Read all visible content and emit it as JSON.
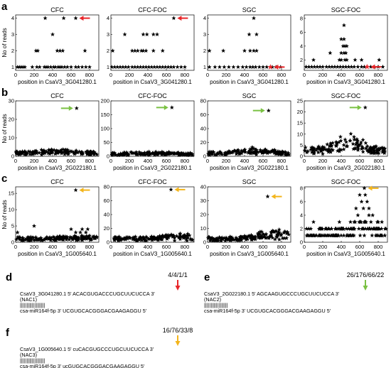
{
  "x_label_prefix": "position in",
  "colors": {
    "red": "#e8262a",
    "green": "#7ac143",
    "orange": "#f3b51c",
    "star": "#000000"
  },
  "chart_data": [
    {
      "type": "scatter",
      "panel": "a",
      "title": "CFC",
      "ylabel": "No of reads",
      "xlabel": "position in CsaV3_3G041280.1",
      "xlim": [
        0,
        900
      ],
      "ylim": [
        0.8,
        4.2
      ],
      "yticks": [
        1,
        2,
        3,
        4
      ],
      "xticks": [
        0,
        200,
        400,
        600,
        800
      ],
      "stars": [
        [
          20,
          1
        ],
        [
          40,
          1
        ],
        [
          60,
          1
        ],
        [
          80,
          1
        ],
        [
          100,
          1
        ],
        [
          180,
          1
        ],
        [
          230,
          1
        ],
        [
          260,
          1
        ],
        [
          310,
          1
        ],
        [
          330,
          1
        ],
        [
          350,
          1
        ],
        [
          380,
          1
        ],
        [
          410,
          1
        ],
        [
          430,
          1
        ],
        [
          460,
          1
        ],
        [
          480,
          1
        ],
        [
          500,
          1
        ],
        [
          530,
          1
        ],
        [
          560,
          1
        ],
        [
          600,
          1
        ],
        [
          650,
          1
        ],
        [
          680,
          1
        ],
        [
          720,
          1
        ],
        [
          760,
          1
        ],
        [
          800,
          1
        ],
        [
          220,
          2
        ],
        [
          240,
          2
        ],
        [
          450,
          2
        ],
        [
          480,
          2
        ],
        [
          510,
          2
        ],
        [
          750,
          2
        ],
        [
          400,
          3
        ],
        [
          320,
          4
        ],
        [
          520,
          4
        ],
        [
          650,
          4
        ]
      ],
      "highlight": [],
      "arrow": {
        "at": [
          650,
          4
        ],
        "color": "red",
        "dir": "left"
      }
    },
    {
      "type": "scatter",
      "panel": "a",
      "title": "CFC-FOC",
      "ylabel": "",
      "xlabel": "position in CsaV3_3G041280.1",
      "xlim": [
        0,
        900
      ],
      "ylim": [
        0.8,
        4.2
      ],
      "yticks": [
        1,
        2,
        3,
        4
      ],
      "xticks": [
        0,
        200,
        400,
        600,
        800
      ],
      "stars": [
        [
          10,
          1
        ],
        [
          40,
          1
        ],
        [
          70,
          1
        ],
        [
          100,
          1
        ],
        [
          130,
          1
        ],
        [
          160,
          1
        ],
        [
          190,
          1
        ],
        [
          230,
          1
        ],
        [
          260,
          1
        ],
        [
          290,
          1
        ],
        [
          320,
          1
        ],
        [
          350,
          1
        ],
        [
          380,
          1
        ],
        [
          410,
          1
        ],
        [
          440,
          1
        ],
        [
          470,
          1
        ],
        [
          500,
          1
        ],
        [
          530,
          1
        ],
        [
          560,
          1
        ],
        [
          590,
          1
        ],
        [
          620,
          1
        ],
        [
          650,
          1
        ],
        [
          680,
          1
        ],
        [
          720,
          1
        ],
        [
          760,
          1
        ],
        [
          800,
          1
        ],
        [
          20,
          2
        ],
        [
          230,
          2
        ],
        [
          260,
          2
        ],
        [
          290,
          2
        ],
        [
          330,
          2
        ],
        [
          350,
          2
        ],
        [
          380,
          2
        ],
        [
          460,
          2
        ],
        [
          560,
          2
        ],
        [
          150,
          3
        ],
        [
          350,
          3
        ],
        [
          390,
          3
        ],
        [
          460,
          3
        ],
        [
          500,
          3
        ],
        [
          680,
          4
        ]
      ],
      "highlight": [],
      "arrow": {
        "at": [
          680,
          4
        ],
        "color": "red",
        "dir": "left"
      }
    },
    {
      "type": "scatter",
      "panel": "a",
      "title": "SGC",
      "ylabel": "",
      "xlabel": "position in CsaV3_3G041280.1",
      "xlim": [
        0,
        900
      ],
      "ylim": [
        0.8,
        4.2
      ],
      "yticks": [
        1,
        2,
        3,
        4
      ],
      "xticks": [
        0,
        200,
        400,
        600,
        800
      ],
      "stars": [
        [
          20,
          1
        ],
        [
          80,
          1
        ],
        [
          130,
          1
        ],
        [
          180,
          1
        ],
        [
          230,
          1
        ],
        [
          280,
          1
        ],
        [
          330,
          1
        ],
        [
          380,
          1
        ],
        [
          420,
          1
        ],
        [
          460,
          1
        ],
        [
          490,
          1
        ],
        [
          520,
          1
        ],
        [
          560,
          1
        ],
        [
          600,
          1
        ],
        [
          640,
          1
        ],
        [
          700,
          1
        ],
        [
          740,
          1
        ],
        [
          790,
          1
        ],
        [
          20,
          2
        ],
        [
          170,
          2
        ],
        [
          400,
          2
        ],
        [
          460,
          2
        ],
        [
          500,
          2
        ],
        [
          530,
          2
        ],
        [
          450,
          3
        ],
        [
          530,
          3
        ],
        [
          500,
          4
        ]
      ],
      "highlight": [
        [
          680,
          1
        ]
      ],
      "arrow": {
        "at": [
          680,
          1
        ],
        "color": "red",
        "dir": "left"
      }
    },
    {
      "type": "scatter",
      "panel": "a",
      "title": "SGC-FOC",
      "ylabel": "",
      "xlabel": "position in CsaV3_3G041280.1",
      "xlim": [
        0,
        900
      ],
      "ylim": [
        0.5,
        8.5
      ],
      "yticks": [
        2,
        4,
        6,
        8
      ],
      "xticks": [
        0,
        200,
        400,
        600,
        800
      ],
      "stars": [
        [
          20,
          1
        ],
        [
          50,
          1
        ],
        [
          80,
          1
        ],
        [
          110,
          1
        ],
        [
          140,
          1
        ],
        [
          170,
          1
        ],
        [
          200,
          1
        ],
        [
          240,
          1
        ],
        [
          270,
          1
        ],
        [
          300,
          1
        ],
        [
          330,
          1
        ],
        [
          360,
          1
        ],
        [
          390,
          1
        ],
        [
          420,
          1
        ],
        [
          450,
          1
        ],
        [
          480,
          1
        ],
        [
          510,
          1
        ],
        [
          540,
          1
        ],
        [
          580,
          1
        ],
        [
          620,
          1
        ],
        [
          650,
          1
        ],
        [
          720,
          1
        ],
        [
          760,
          1
        ],
        [
          800,
          1
        ],
        [
          850,
          1
        ],
        [
          100,
          2
        ],
        [
          380,
          2
        ],
        [
          400,
          2
        ],
        [
          440,
          2
        ],
        [
          460,
          2
        ],
        [
          550,
          2
        ],
        [
          620,
          2
        ],
        [
          810,
          2
        ],
        [
          280,
          3
        ],
        [
          400,
          3
        ],
        [
          430,
          3
        ],
        [
          450,
          3
        ],
        [
          420,
          4
        ],
        [
          440,
          4
        ],
        [
          460,
          4
        ],
        [
          400,
          5
        ],
        [
          430,
          5
        ],
        [
          430,
          7
        ]
      ],
      "highlight": [
        [
          680,
          1
        ]
      ],
      "arrow": {
        "at": [
          680,
          1
        ],
        "color": "red",
        "dir": "left"
      }
    },
    {
      "type": "scatter",
      "panel": "b",
      "title": "CFC",
      "ylabel": "No of reads",
      "xlabel": "position in CsaV3_2G022180.1",
      "xlim": [
        0,
        900
      ],
      "ylim": [
        0,
        30
      ],
      "yticks": [
        0,
        10,
        20,
        30
      ],
      "xticks": [
        0,
        200,
        400,
        600,
        800
      ],
      "stars": [
        [
          660,
          26
        ]
      ],
      "dense": {
        "base": 0.8,
        "amp": 1.8,
        "hump": 1.5,
        "center": 450,
        "width": 250
      },
      "highlight": [],
      "arrow": {
        "at": [
          660,
          26
        ],
        "color": "green",
        "dir": "right"
      }
    },
    {
      "type": "scatter",
      "panel": "b",
      "title": "CFC-FOC",
      "ylabel": "",
      "xlabel": "position in CsaV3_2G022180.1",
      "xlim": [
        0,
        900
      ],
      "ylim": [
        0,
        200
      ],
      "yticks": [
        0,
        50,
        100,
        150,
        200
      ],
      "xticks": [
        0,
        200,
        400,
        600,
        800
      ],
      "stars": [
        [
          660,
          176
        ]
      ],
      "dense": {
        "base": 3,
        "amp": 9,
        "hump": 6,
        "center": 450,
        "width": 300
      },
      "highlight": [],
      "arrow": {
        "at": [
          660,
          176
        ],
        "color": "green",
        "dir": "right"
      }
    },
    {
      "type": "scatter",
      "panel": "b",
      "title": "SGC",
      "ylabel": "",
      "xlabel": "position in CsaV3_2G022180.1",
      "xlim": [
        0,
        900
      ],
      "ylim": [
        0,
        80
      ],
      "yticks": [
        0,
        20,
        40,
        60,
        80
      ],
      "xticks": [
        0,
        200,
        400,
        600,
        800
      ],
      "stars": [
        [
          660,
          66
        ]
      ],
      "dense": {
        "base": 1.5,
        "amp": 5,
        "hump": 7,
        "center": 500,
        "width": 250
      },
      "highlight": [],
      "arrow": {
        "at": [
          660,
          66
        ],
        "color": "green",
        "dir": "right"
      }
    },
    {
      "type": "scatter",
      "panel": "b",
      "title": "SGC-FOC",
      "ylabel": "",
      "xlabel": "position in CsaV3_2G022180.1",
      "xlim": [
        0,
        900
      ],
      "ylim": [
        0,
        25
      ],
      "yticks": [
        0,
        5,
        10,
        15,
        20,
        25
      ],
      "xticks": [
        0,
        200,
        400,
        600,
        800
      ],
      "stars": [
        [
          660,
          22
        ]
      ],
      "dense": {
        "base": 1,
        "amp": 3,
        "hump": 7,
        "center": 470,
        "width": 200
      },
      "highlight": [],
      "arrow": {
        "at": [
          660,
          22
        ],
        "color": "green",
        "dir": "right"
      }
    },
    {
      "type": "scatter",
      "panel": "c",
      "title": "CFC",
      "ylabel": "No of reads",
      "xlabel": "position in CsaV3_1G005640.1",
      "xlim": [
        0,
        900
      ],
      "ylim": [
        0,
        17
      ],
      "yticks": [
        0,
        5,
        10,
        15
      ],
      "xticks": [
        0,
        200,
        400,
        600,
        800
      ],
      "stars": [
        [
          650,
          16
        ],
        [
          200,
          5
        ],
        [
          20,
          3
        ],
        [
          600,
          4
        ],
        [
          650,
          3
        ],
        [
          700,
          3
        ],
        [
          720,
          4
        ],
        [
          760,
          3
        ],
        [
          780,
          4
        ],
        [
          800,
          2
        ]
      ],
      "dense": {
        "base": 0.5,
        "amp": 1.2,
        "hump": 0.5,
        "center": 700,
        "width": 200
      },
      "highlight": [],
      "arrow": {
        "at": [
          650,
          16
        ],
        "color": "orange",
        "dir": "left"
      }
    },
    {
      "type": "scatter",
      "panel": "c",
      "title": "CFC-FOC",
      "ylabel": "",
      "xlabel": "position in CsaV3_1G005640.1",
      "xlim": [
        0,
        900
      ],
      "ylim": [
        0,
        80
      ],
      "yticks": [
        0,
        20,
        40,
        60,
        80
      ],
      "xticks": [
        0,
        200,
        400,
        600,
        800
      ],
      "stars": [
        [
          650,
          76
        ]
      ],
      "dense": {
        "base": 2,
        "amp": 6,
        "hump": 5,
        "center": 750,
        "width": 250
      },
      "highlight": [],
      "arrow": {
        "at": [
          650,
          76
        ],
        "color": "orange",
        "dir": "left"
      }
    },
    {
      "type": "scatter",
      "panel": "c",
      "title": "SGC",
      "ylabel": "",
      "xlabel": "position in CsaV3_1G005640.1",
      "xlim": [
        0,
        900
      ],
      "ylim": [
        0,
        40
      ],
      "yticks": [
        0,
        10,
        20,
        30,
        40
      ],
      "xticks": [
        0,
        200,
        400,
        600,
        800
      ],
      "stars": [
        [
          650,
          33
        ]
      ],
      "dense": {
        "base": 1,
        "amp": 3,
        "hump": 7,
        "center": 760,
        "width": 250
      },
      "highlight": [],
      "arrow": {
        "at": [
          650,
          33
        ],
        "color": "orange",
        "dir": "left"
      }
    },
    {
      "type": "scatter",
      "panel": "c",
      "title": "SGC-FOC",
      "ylabel": "",
      "xlabel": "position in CsaV3_1G005640.1",
      "xlim": [
        0,
        900
      ],
      "ylim": [
        0,
        8.2
      ],
      "yticks": [
        0,
        2,
        4,
        6,
        8
      ],
      "xticks": [
        0,
        200,
        400,
        600,
        800
      ],
      "stars": [
        [
          650,
          8
        ],
        [
          600,
          7
        ],
        [
          660,
          7
        ],
        [
          620,
          6
        ],
        [
          680,
          6
        ],
        [
          560,
          5
        ],
        [
          640,
          5
        ],
        [
          700,
          5
        ],
        [
          580,
          4
        ],
        [
          700,
          4
        ],
        [
          740,
          4
        ],
        [
          100,
          3
        ],
        [
          380,
          3
        ],
        [
          500,
          3
        ],
        [
          800,
          3
        ],
        [
          840,
          3
        ]
      ],
      "dense": {
        "base": 0.4,
        "amp": 1.6,
        "hump": 1.4,
        "center": 650,
        "width": 250,
        "integer": true
      },
      "highlight": [],
      "arrow": {
        "at": [
          650,
          8
        ],
        "color": "orange",
        "dir": "left"
      }
    }
  ],
  "alignments": [
    {
      "panel": "d",
      "reads": "4/4/1/1",
      "arrow_color": "red",
      "lines": [
        "CsaV3_3G041280.1 5'  ACACGUGACCCUGCUUCUCCA 3'",
        "(NAC1)",
        "                    |||||||||||||||||||",
        "csa-miR164f-5p  3'  UCGUGCACGGGACGAAGAGGU 5'"
      ]
    },
    {
      "panel": "e",
      "reads": "26/176/66/22",
      "arrow_color": "green",
      "lines": [
        "CsaV3_2G022180.1 5' AGCAAGUGCCCUGCUUCUCCA 3'",
        "(NAC2)",
        "                     ||||||||||||||||||",
        "csa-miR164f-5p   3' UCGUGCACGGGACGAAGAGGU 5'"
      ]
    },
    {
      "panel": "f",
      "reads": "16/76/33/8",
      "arrow_color": "orange",
      "lines": [
        "CsaV3_1G005640.1 5'  cuCACGUGCCCUGCUUCUCCA 3'",
        "(NAC3)",
        "                     |||||||||||||||||||",
        "csa-miR164f-5p   3'  ucGUGCACGGGACGAAGAGGU 5'"
      ]
    }
  ]
}
